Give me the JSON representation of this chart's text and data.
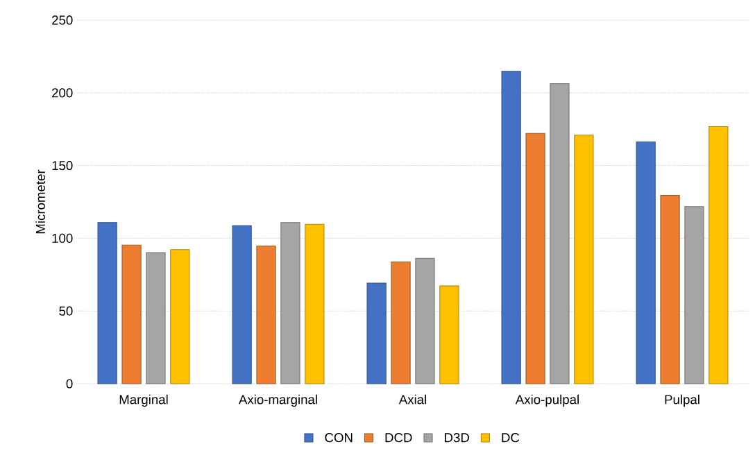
{
  "chart_data": {
    "type": "bar",
    "ylabel": "Micrometer",
    "categories": [
      "Marginal",
      "Axio-marginal",
      "Axial",
      "Axio-pulpal",
      "Pulpal"
    ],
    "series": [
      {
        "name": "CON",
        "color": "#4472c4",
        "values": [
          110.8,
          108.6,
          69.2,
          214.8,
          166.3
        ]
      },
      {
        "name": "DCD",
        "color": "#ed7d31",
        "values": [
          95.3,
          94.7,
          83.7,
          172.1,
          129.5
        ]
      },
      {
        "name": "D3D",
        "color": "#a5a5a5",
        "values": [
          90.2,
          110.8,
          86.2,
          206.3,
          121.8
        ]
      },
      {
        "name": "DC",
        "color": "#ffc000",
        "values": [
          92.2,
          109.6,
          67.2,
          170.9,
          176.8
        ]
      }
    ],
    "ylim": [
      0,
      250
    ],
    "yticks": [
      0,
      50,
      100,
      150,
      200,
      250
    ],
    "grid": "y",
    "legend": "bottom"
  }
}
